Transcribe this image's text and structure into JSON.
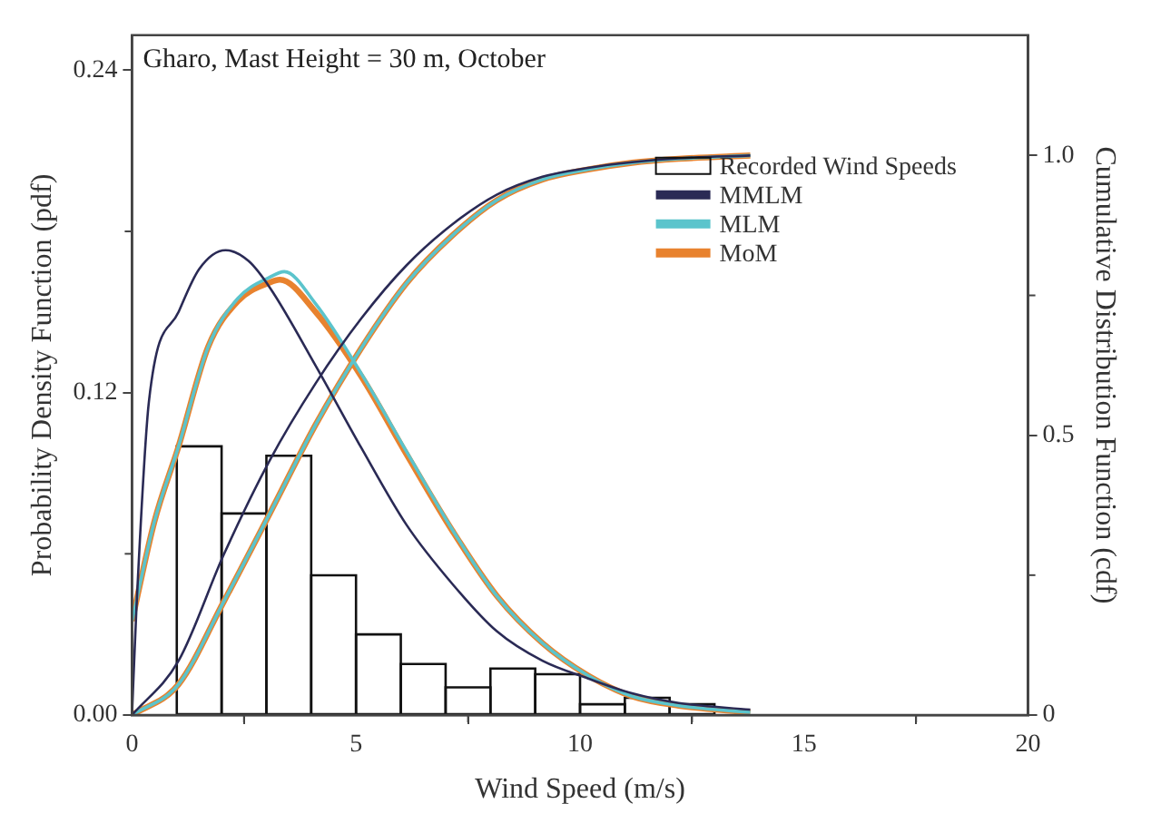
{
  "chart_data": {
    "type": "line",
    "title": "Gharo, Mast Height = 30 m, October",
    "xlabel": "Wind Speed (m/s)",
    "ylabel": "Probability Density Function (pdf)",
    "y2label": "Cumulative Distribution Function (cdf)",
    "xlim": [
      0,
      20
    ],
    "xticks": [
      0,
      {
        "value": 2.5,
        "label": null
      },
      5,
      {
        "value": 7.5,
        "label": null
      },
      10,
      {
        "value": 12.5,
        "label": null
      },
      15,
      {
        "value": 17.5,
        "label": null
      },
      20
    ],
    "ylim": [
      0,
      0.253
    ],
    "yticks": [
      {
        "value": 0,
        "label": "0.00"
      },
      {
        "value": 0.06,
        "label": null
      },
      0.12,
      {
        "value": 0.18,
        "label": null
      },
      0.24
    ],
    "y2lim": [
      0,
      1.215
    ],
    "y2ticks": [
      0,
      {
        "value": 0.25,
        "label": null
      },
      0.5,
      {
        "value": 0.75,
        "label": null
      },
      {
        "value": 1,
        "label": "1.0"
      }
    ],
    "grid": false,
    "legend": "top right",
    "marker": "none",
    "line_style": "solid",
    "series": [
      {
        "type": "histogram",
        "name": "Recorded Wind Speeds",
        "color": "#111111",
        "bins": [
          1,
          2,
          3,
          4,
          5,
          6,
          7,
          8,
          9,
          10,
          11,
          12,
          13
        ],
        "values": [
          0.1,
          0.075,
          0.0965,
          0.052,
          0.03,
          0.019,
          0.0103,
          0.0173,
          0.0152,
          0.004,
          0.0064,
          0.004
        ]
      },
      {
        "type": "line",
        "name": "MMLM",
        "color": "#2a2a55",
        "x": [
          0,
          0.1,
          0.38,
          1.04,
          1.5,
          2.09,
          2.6,
          3.08,
          4.1,
          5.12,
          6.13,
          7.15,
          8.14,
          9.16,
          10.18,
          11.16,
          12.2,
          13.8
        ],
        "values": [
          0,
          0.04,
          0.117,
          0.15,
          0.166,
          0.173,
          0.169,
          0.159,
          0.13,
          0.0994,
          0.0707,
          0.0488,
          0.0312,
          0.0202,
          0.0136,
          0.0081,
          0.0045,
          0.002
        ]
      },
      {
        "type": "line",
        "name": "MLM",
        "color": "#5bc4cc",
        "x": [
          0,
          0.5,
          1.04,
          1.7,
          2.36,
          3.08,
          3.4,
          4.1,
          5.12,
          6.13,
          7.15,
          8.14,
          9.16,
          10.18,
          11.16,
          12.2,
          13.8
        ],
        "values": [
          0.035,
          0.072,
          0.1,
          0.137,
          0.155,
          0.163,
          0.165,
          0.153,
          0.127,
          0.098,
          0.069,
          0.0444,
          0.0268,
          0.0147,
          0.007,
          0.0035,
          0.001
        ]
      },
      {
        "type": "line",
        "name": "MoM",
        "color": "#e8822e",
        "x": [
          0,
          0.5,
          1.04,
          1.7,
          2.36,
          3.08,
          3.3,
          4.1,
          5.12,
          6.13,
          7.15,
          8.14,
          9.16,
          10.18,
          11.16,
          12.2,
          13.8
        ],
        "values": [
          0.035,
          0.072,
          0.1,
          0.137,
          0.154,
          0.161,
          0.162,
          0.15,
          0.126,
          0.097,
          0.0686,
          0.0444,
          0.0268,
          0.0147,
          0.007,
          0.0035,
          0.001
        ]
      },
      {
        "type": "line",
        "axis": "y2",
        "color": "#2a2a55",
        "x": [
          0,
          1.04,
          2.05,
          3.08,
          4.1,
          5.12,
          6.13,
          7.15,
          8.14,
          9.16,
          10.18,
          11.16,
          12.2,
          13.8
        ],
        "values": [
          0,
          0.097,
          0.287,
          0.456,
          0.593,
          0.709,
          0.804,
          0.877,
          0.93,
          0.962,
          0.978,
          0.988,
          0.995,
          1.0
        ]
      },
      {
        "type": "line",
        "axis": "y2",
        "color": "#5bc4cc",
        "x": [
          0,
          1.04,
          2.05,
          3.08,
          4.1,
          5.12,
          6.13,
          7.15,
          8.14,
          9.16,
          10.18,
          11.16,
          12.2,
          13.8
        ],
        "values": [
          0,
          0.055,
          0.203,
          0.361,
          0.519,
          0.656,
          0.772,
          0.857,
          0.92,
          0.957,
          0.975,
          0.987,
          0.994,
          1.0
        ]
      },
      {
        "type": "line",
        "axis": "y2",
        "color": "#e8822e",
        "x": [
          0,
          1.04,
          2.05,
          3.08,
          4.1,
          5.12,
          6.13,
          7.15,
          8.14,
          9.16,
          10.18,
          11.16,
          12.2,
          13.8
        ],
        "values": [
          0,
          0.055,
          0.203,
          0.361,
          0.519,
          0.656,
          0.772,
          0.857,
          0.92,
          0.957,
          0.975,
          0.987,
          0.994,
          1.0
        ]
      }
    ]
  }
}
